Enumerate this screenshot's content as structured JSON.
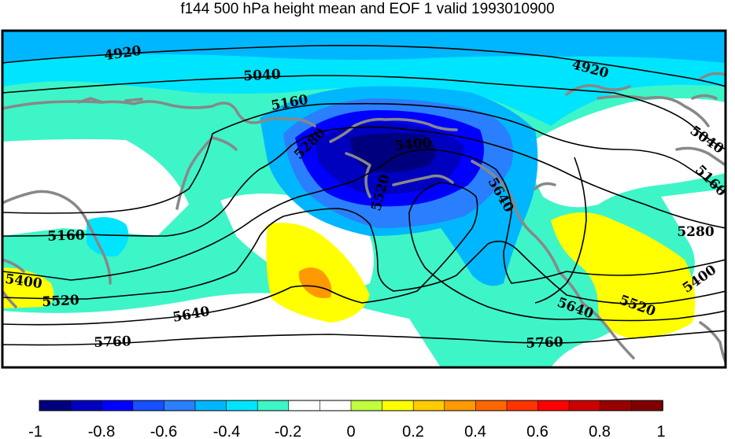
{
  "title": "f144 500 hPa height mean and EOF 1 valid 1993010900",
  "colors": {
    "background": "#ffffff",
    "coastline": "#888888",
    "contour": "#000000",
    "scale": [
      "#00007f",
      "#0000bf",
      "#0000ff",
      "#1650ff",
      "#2a7fff",
      "#00b7ff",
      "#00e5ff",
      "#3ef5c8",
      "#ffffff",
      "#ffffff",
      "#c0ff3e",
      "#ffff00",
      "#ffcc00",
      "#ff9900",
      "#ff6600",
      "#ff3300",
      "#ff0000",
      "#cc0000",
      "#990000",
      "#800000"
    ]
  },
  "colorbar": {
    "ticks": [
      "-1",
      "-0.8",
      "-0.6",
      "-0.4",
      "-0.2",
      "0",
      "0.2",
      "0.4",
      "0.6",
      "0.8",
      "1"
    ]
  },
  "contour_labels": [
    "4920",
    "4920",
    "5040",
    "5040",
    "5160",
    "5160",
    "5160",
    "5280",
    "5280",
    "5400",
    "5400",
    "5400",
    "5520",
    "5520",
    "5520",
    "5640",
    "5640",
    "5640",
    "5760",
    "5760"
  ]
}
